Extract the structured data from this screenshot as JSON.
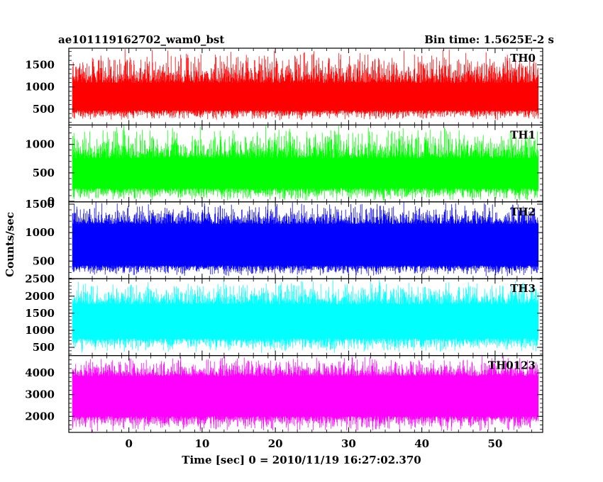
{
  "chart_data": {
    "type": "line",
    "title_left": "ae101119162702_wam0_bst",
    "title_right": "Bin time: 1.5625E-2 s",
    "xlabel": "Time [sec] 0 = 2010/11/19 16:27:02.370",
    "ylabel": "Counts/sec",
    "xlim": [
      -8.2,
      56.5
    ],
    "x_ticks": [
      0,
      10,
      20,
      30,
      40,
      50
    ],
    "x_range_data": [
      -7.7,
      55.9
    ],
    "panels": [
      {
        "name": "TH0",
        "color": "#ff0000",
        "ylim": [
          140,
          1875
        ],
        "ticks": [
          500,
          1000,
          1500
        ],
        "band": [
          470,
          1090
        ],
        "spike_max": 1850,
        "spike_min": 250
      },
      {
        "name": "TH1",
        "color": "#00ff00",
        "ylim": [
          -10,
          1340
        ],
        "ticks": [
          0,
          500,
          1000
        ],
        "band": [
          230,
          760
        ],
        "spike_max": 1330,
        "spike_min": 0
      },
      {
        "name": "TH2",
        "color": "#0000ff",
        "ylim": [
          190,
          1540
        ],
        "ticks": [
          500,
          1000,
          1500
        ],
        "band": [
          420,
          1150
        ],
        "spike_max": 1530,
        "spike_min": 240
      },
      {
        "name": "TH3",
        "color": "#00ffff",
        "ylim": [
          260,
          2510
        ],
        "ticks": [
          500,
          1000,
          1500,
          2000,
          2500
        ],
        "band": [
          760,
          1760
        ],
        "spike_max": 2480,
        "spike_min": 350
      },
      {
        "name": "TH0123",
        "color": "#ff00ff",
        "ylim": [
          1260,
          4800
        ],
        "ticks": [
          2000,
          3000,
          4000
        ],
        "band": [
          2000,
          3850
        ],
        "spike_max": 4750,
        "spike_min": 1300
      }
    ]
  }
}
